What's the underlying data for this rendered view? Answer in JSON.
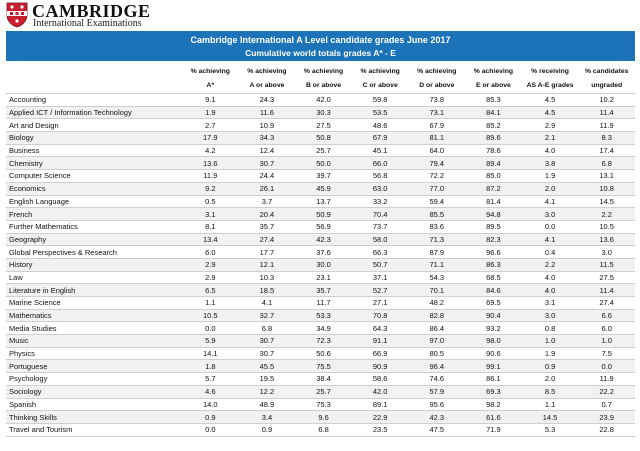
{
  "brand": {
    "name": "CAMBRIDGE",
    "subtitle": "International Examinations"
  },
  "banner": {
    "title": "Cambridge International A Level candidate grades June 2017",
    "subtitle": "Cumulative world totals grades A* - E"
  },
  "columns": [
    [
      "% achieving",
      "A*"
    ],
    [
      "% achieving",
      "A or above"
    ],
    [
      "% achieving",
      "B or above"
    ],
    [
      "% achieving",
      "C or above"
    ],
    [
      "% achieving",
      "D or above"
    ],
    [
      "% achieving",
      "E or above"
    ],
    [
      "% receiving",
      "AS A-E grades"
    ],
    [
      "% candidates",
      "ungraded"
    ]
  ],
  "rows": [
    [
      "Accounting",
      "9.1",
      "24.3",
      "42.0",
      "59.8",
      "73.8",
      "85.3",
      "4.5",
      "10.2"
    ],
    [
      "Applied ICT / Information Technology",
      "1.9",
      "11.6",
      "30.3",
      "53.5",
      "73.1",
      "84.1",
      "4.5",
      "11.4"
    ],
    [
      "Art and Design",
      "2.7",
      "10.9",
      "27.5",
      "48.6",
      "67.9",
      "85.2",
      "2.9",
      "11.9"
    ],
    [
      "Biology",
      "17.9",
      "34.3",
      "50.8",
      "67.9",
      "81.1",
      "89.6",
      "2.1",
      "8.3"
    ],
    [
      "Business",
      "4.2",
      "12.4",
      "25.7",
      "45.1",
      "64.0",
      "78.6",
      "4.0",
      "17.4"
    ],
    [
      "Chemistry",
      "13.6",
      "30.7",
      "50.0",
      "66.0",
      "79.4",
      "89.4",
      "3.8",
      "6.8"
    ],
    [
      "Computer Science",
      "11.9",
      "24.4",
      "39.7",
      "56.8",
      "72.2",
      "85.0",
      "1.9",
      "13.1"
    ],
    [
      "Economics",
      "9.2",
      "26.1",
      "45.9",
      "63.0",
      "77.0",
      "87.2",
      "2.0",
      "10.8"
    ],
    [
      "English Language",
      "0.5",
      "3.7",
      "13.7",
      "33.2",
      "59.4",
      "81.4",
      "4.1",
      "14.5"
    ],
    [
      "French",
      "3.1",
      "20.4",
      "50.9",
      "70.4",
      "85.5",
      "94.8",
      "3.0",
      "2.2"
    ],
    [
      "Further Mathematics",
      "8.1",
      "35.7",
      "56.9",
      "73.7",
      "83.6",
      "89.5",
      "0.0",
      "10.5"
    ],
    [
      "Geography",
      "13.4",
      "27.4",
      "42.3",
      "58.0",
      "71.3",
      "82.3",
      "4.1",
      "13.6"
    ],
    [
      "Global Perspectives & Research",
      "6.0",
      "17.7",
      "37.6",
      "66.3",
      "87.9",
      "96.6",
      "0.4",
      "3.0"
    ],
    [
      "History",
      "2.9",
      "12.1",
      "30.0",
      "50.7",
      "71.1",
      "86.3",
      "2.2",
      "11.5"
    ],
    [
      "Law",
      "2.9",
      "10.3",
      "23.1",
      "37.1",
      "54.3",
      "68.5",
      "4.0",
      "27.5"
    ],
    [
      "Literature in English",
      "6.5",
      "18.5",
      "35.7",
      "52.7",
      "70.1",
      "84.6",
      "4.0",
      "11.4"
    ],
    [
      "Marine Science",
      "1.1",
      "4.1",
      "11.7",
      "27.1",
      "48.2",
      "69.5",
      "3.1",
      "27.4"
    ],
    [
      "Mathematics",
      "10.5",
      "32.7",
      "53.3",
      "70.8",
      "82.8",
      "90.4",
      "3.0",
      "6.6"
    ],
    [
      "Media Studies",
      "0.0",
      "6.8",
      "34.9",
      "64.3",
      "86.4",
      "93.2",
      "0.8",
      "6.0"
    ],
    [
      "Music",
      "5.9",
      "30.7",
      "72.3",
      "91.1",
      "97.0",
      "98.0",
      "1.0",
      "1.0"
    ],
    [
      "Physics",
      "14.1",
      "30.7",
      "50.6",
      "66.9",
      "80.5",
      "90.6",
      "1.9",
      "7.5"
    ],
    [
      "Portuguese",
      "1.8",
      "45.5",
      "75.5",
      "90.9",
      "96.4",
      "99.1",
      "0.9",
      "0.0"
    ],
    [
      "Psychology",
      "5.7",
      "19.5",
      "38.4",
      "58.6",
      "74.6",
      "86.1",
      "2.0",
      "11.9"
    ],
    [
      "Sociology",
      "4.6",
      "12.2",
      "25.7",
      "42.0",
      "57.9",
      "69.3",
      "8.5",
      "22.2"
    ],
    [
      "Spanish",
      "14.0",
      "48.9",
      "75.3",
      "89.1",
      "95.6",
      "98.2",
      "1.1",
      "0.7"
    ],
    [
      "Thinking Skills",
      "0.9",
      "3.4",
      "9.6",
      "22.9",
      "42.3",
      "61.6",
      "14.5",
      "23.9"
    ],
    [
      "Travel and Tourism",
      "0.0",
      "0.9",
      "6.8",
      "23.5",
      "47.5",
      "71.9",
      "5.3",
      "22.8"
    ]
  ],
  "colors": {
    "banner": "#1c73b8",
    "crest_red": "#c8202f"
  },
  "icons": {
    "crest": "cambridge-shield-icon"
  }
}
